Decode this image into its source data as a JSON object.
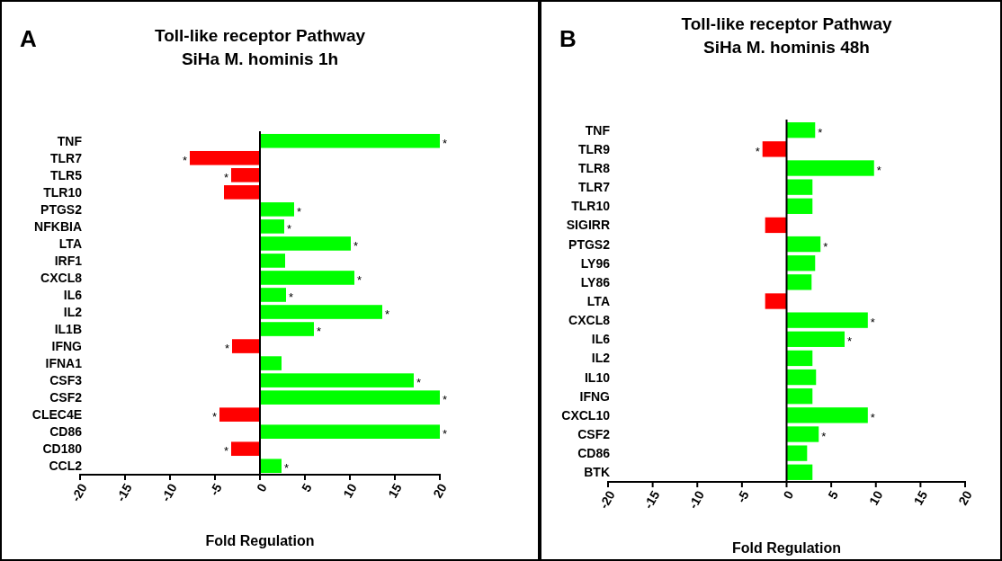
{
  "chart_data": [
    {
      "type": "bar",
      "orientation": "horizontal",
      "title": "Toll-like receptor Pathway",
      "subtitle": "SiHa M. hominis 1h",
      "xlabel": "Fold Regulation",
      "annotations": [
        "A"
      ],
      "categories": [
        "TNF",
        "TLR7",
        "TLR5",
        "TLR10",
        "PTGS2",
        "NFKBIA",
        "LTA",
        "IRF1",
        "CXCL8",
        "IL6",
        "IL2",
        "IL1B",
        "IFNG",
        "IFNA1",
        "CSF3",
        "CSF2",
        "CLEC4E",
        "CD86",
        "CD180",
        "CCL2"
      ],
      "values": [
        20,
        -7.8,
        -3.2,
        -4.0,
        3.8,
        2.7,
        10.1,
        2.8,
        10.5,
        2.9,
        13.6,
        6.0,
        -3.1,
        2.4,
        17.1,
        20,
        -4.5,
        20,
        -3.2,
        2.4
      ],
      "colors": [
        "#00ff00",
        "#ff0000",
        "#ff0000",
        "#ff0000",
        "#00ff00",
        "#00ff00",
        "#00ff00",
        "#00ff00",
        "#00ff00",
        "#00ff00",
        "#00ff00",
        "#00ff00",
        "#ff0000",
        "#00ff00",
        "#00ff00",
        "#00ff00",
        "#ff0000",
        "#00ff00",
        "#ff0000",
        "#00ff00"
      ],
      "value_labels": [
        "*",
        "*",
        "*",
        null,
        "*",
        "*",
        "*",
        null,
        "*",
        "*",
        "*",
        "*",
        "*",
        null,
        "*",
        "*",
        "*",
        "*",
        "*",
        "*"
      ],
      "xlim": [
        -20,
        20
      ],
      "xticks": [
        -20,
        -15,
        -10,
        -5,
        0,
        5,
        10,
        15,
        20
      ]
    },
    {
      "type": "bar",
      "orientation": "horizontal",
      "title": "Toll-like receptor Pathway",
      "subtitle": "SiHa M. hominis 48h",
      "xlabel": "Fold Regulation",
      "annotations": [
        "B"
      ],
      "categories": [
        "TNF",
        "TLR9",
        "TLR8",
        "TLR7",
        "TLR10",
        "SIGIRR",
        "PTGS2",
        "LY96",
        "LY86",
        "LTA",
        "CXCL8",
        "IL6",
        "IL2",
        "IL10",
        "IFNG",
        "CXCL10",
        "CSF2",
        "CD86",
        "BTK"
      ],
      "values": [
        3.2,
        -2.7,
        9.8,
        2.9,
        2.9,
        -2.4,
        3.8,
        3.2,
        2.8,
        -2.4,
        9.1,
        6.5,
        2.9,
        3.3,
        2.9,
        9.1,
        3.6,
        2.3,
        2.9
      ],
      "colors": [
        "#00ff00",
        "#ff0000",
        "#00ff00",
        "#00ff00",
        "#00ff00",
        "#ff0000",
        "#00ff00",
        "#00ff00",
        "#00ff00",
        "#ff0000",
        "#00ff00",
        "#00ff00",
        "#00ff00",
        "#00ff00",
        "#00ff00",
        "#00ff00",
        "#00ff00",
        "#00ff00",
        "#00ff00"
      ],
      "value_labels": [
        "*",
        "*",
        "*",
        null,
        null,
        null,
        "*",
        null,
        null,
        null,
        "*",
        "*",
        null,
        null,
        null,
        "*",
        "*",
        null,
        null
      ],
      "xlim": [
        -20,
        20
      ],
      "xticks": [
        -20,
        -15,
        -10,
        -5,
        0,
        5,
        10,
        15,
        20
      ]
    }
  ]
}
